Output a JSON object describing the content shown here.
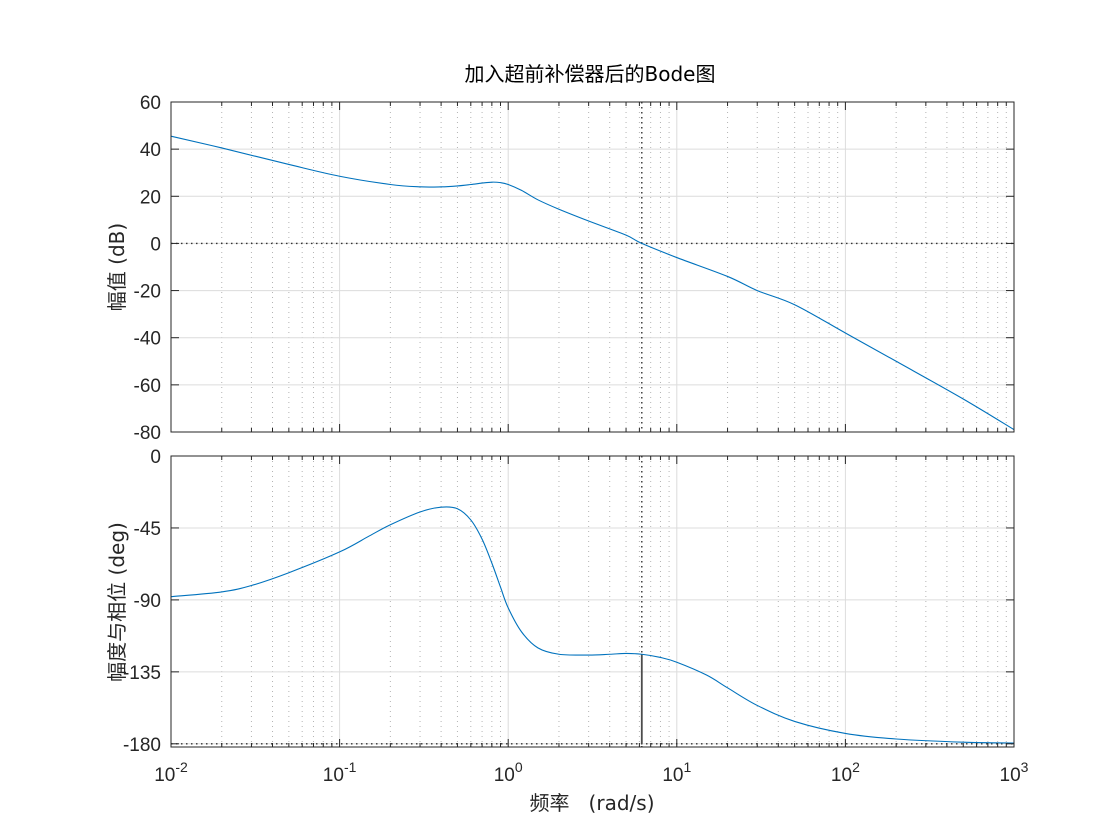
{
  "chart_data": [
    {
      "type": "line",
      "panel": "magnitude",
      "title": "加入超前补偿器后的Bode图",
      "ylabel": "幅值 (dB)",
      "xscale": "log",
      "xlim": [
        0.01,
        1000
      ],
      "ylim": [
        -80,
        60
      ],
      "yticks": [
        "60",
        "40",
        "20",
        "0",
        "-20",
        "-40",
        "-60",
        "-80"
      ],
      "grid": true,
      "series": [
        {
          "color": "#0072BD",
          "x": [
            0.01,
            0.02,
            0.05,
            0.1,
            0.2,
            0.3,
            0.4,
            0.5,
            0.6,
            0.7,
            0.8,
            0.9,
            1.0,
            1.2,
            1.5,
            2,
            3,
            5,
            6.2,
            10,
            20,
            30,
            50,
            100,
            200,
            500,
            1000
          ],
          "y": [
            45.5,
            40.5,
            33.5,
            28.5,
            25.0,
            24.0,
            24.0,
            24.4,
            25.0,
            25.6,
            26.0,
            25.8,
            25.0,
            22.5,
            18.5,
            14.5,
            9.5,
            3.5,
            0,
            -6,
            -14,
            -20,
            -26,
            -38,
            -50,
            -66,
            -79
          ]
        }
      ],
      "annotations": [
        {
          "kind": "reference-line",
          "axis": "y",
          "value": 0
        },
        {
          "kind": "reference-line",
          "axis": "x",
          "value": 6.2
        }
      ]
    },
    {
      "type": "line",
      "panel": "phase",
      "ylabel": "幅度与相位 (deg)",
      "xlabel": "频率   (rad/s)",
      "xscale": "log",
      "xlim": [
        0.01,
        1000
      ],
      "ylim": [
        -182,
        0
      ],
      "yticks": [
        "0",
        "-45",
        "-90",
        "-135",
        "-180"
      ],
      "xticks": [
        {
          "base": "10",
          "exp": "-2",
          "value": 0.01
        },
        {
          "base": "10",
          "exp": "-1",
          "value": 0.1
        },
        {
          "base": "10",
          "exp": "0",
          "value": 1
        },
        {
          "base": "10",
          "exp": "1",
          "value": 10
        },
        {
          "base": "10",
          "exp": "2",
          "value": 100
        },
        {
          "base": "10",
          "exp": "3",
          "value": 1000
        }
      ],
      "grid": true,
      "series": [
        {
          "color": "#0072BD",
          "x": [
            0.01,
            0.02,
            0.03,
            0.05,
            0.1,
            0.15,
            0.2,
            0.3,
            0.4,
            0.5,
            0.6,
            0.7,
            0.8,
            0.9,
            1.0,
            1.2,
            1.5,
            2,
            3,
            4,
            5,
            6.2,
            8,
            10,
            15,
            20,
            30,
            50,
            100,
            200,
            500,
            1000
          ],
          "y": [
            -88,
            -85,
            -81,
            -73,
            -60,
            -50,
            -43,
            -35,
            -32,
            -33,
            -40,
            -52,
            -67,
            -82,
            -95,
            -110,
            -120,
            -124,
            -124.5,
            -124,
            -123.5,
            -124,
            -126,
            -129,
            -137,
            -145,
            -156,
            -166,
            -173.5,
            -177,
            -179,
            -179.5
          ]
        }
      ],
      "annotations": [
        {
          "kind": "reference-line",
          "axis": "y",
          "value": -180
        },
        {
          "kind": "reference-line",
          "axis": "x",
          "value": 6.2
        },
        {
          "kind": "phase-margin-bar",
          "x": 6.2,
          "from": -180,
          "to": -124
        }
      ]
    }
  ]
}
